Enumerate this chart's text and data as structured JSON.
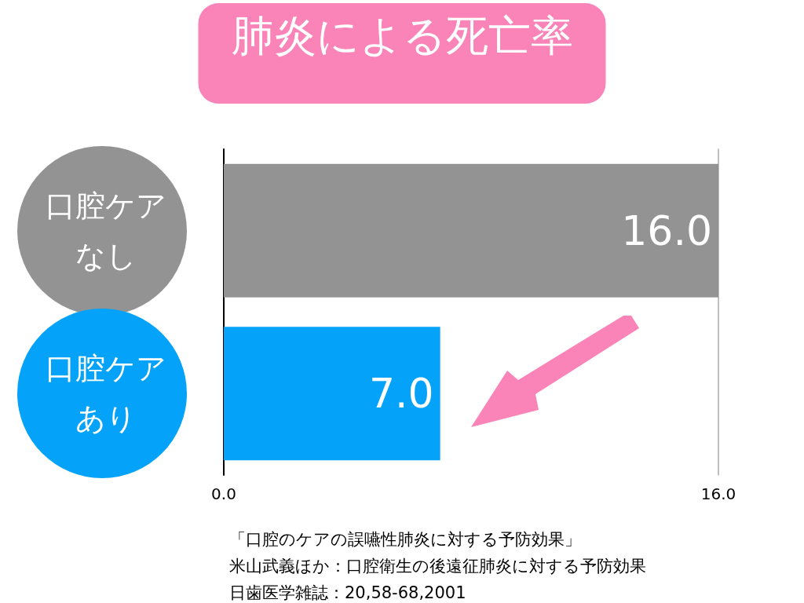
{
  "chart_data": {
    "type": "bar",
    "orientation": "horizontal",
    "title": "肺炎による死亡率",
    "categories": [
      "口腔ケアなし",
      "口腔ケアあり"
    ],
    "values": [
      16,
      7
    ],
    "colors": [
      "#939393",
      "#04a2f9"
    ],
    "value_labels": [
      "16.0",
      "7.0"
    ],
    "xlim": [
      0,
      16
    ],
    "xticks": [
      {
        "value": 0,
        "label": "0.0"
      },
      {
        "value": 16,
        "label": "16.0"
      }
    ],
    "annotations": [
      "「口腔のケアの誤嚥性肺炎に対する予防効果」",
      "米山武義ほか：口腔衛生の後遠征肺炎に対する予防効果",
      "日歯医学雑誌：20,58-68,2001"
    ]
  }
}
